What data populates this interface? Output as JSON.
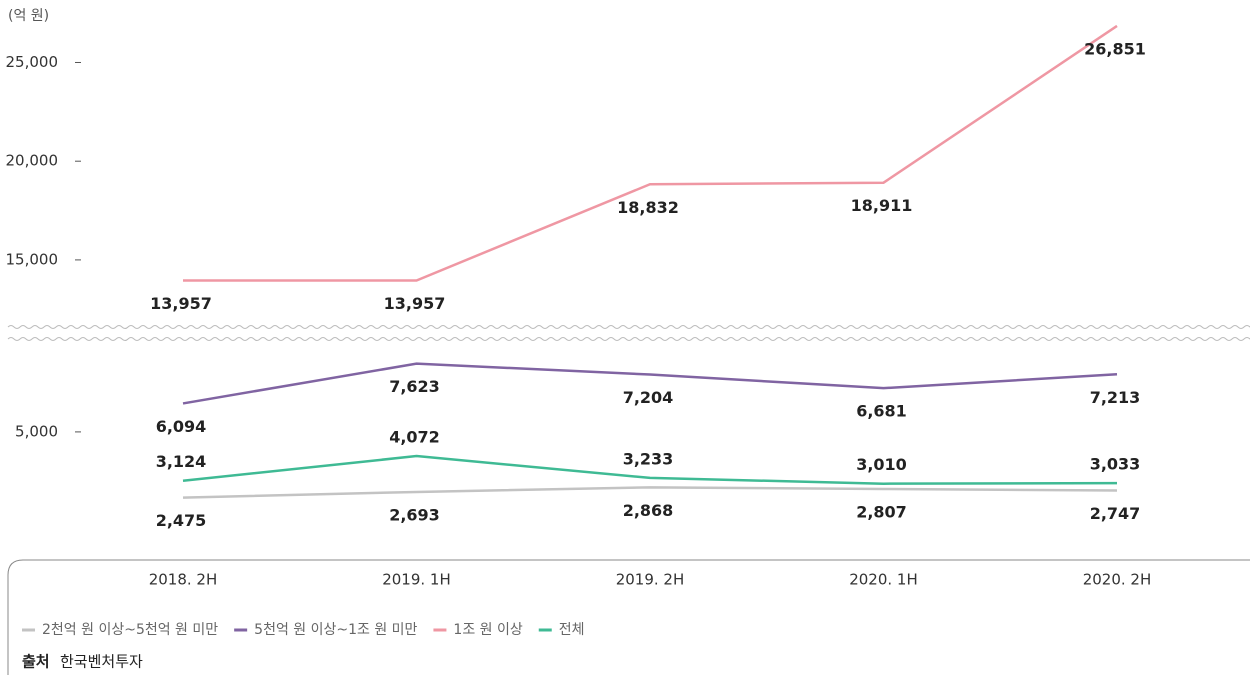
{
  "chart_data": {
    "type": "line",
    "ylabel": "(억 원)",
    "categories": [
      "2018. 2H",
      "2019. 1H",
      "2019. 2H",
      "2020. 1H",
      "2020. 2H"
    ],
    "series": [
      {
        "name": "2천억 원 이상~5천억 원 미만",
        "color": "#c3c3c3",
        "label_position": "below",
        "values": [
          2475,
          2693,
          2868,
          2807,
          2747
        ],
        "value_labels": [
          "2,475",
          "2,693",
          "2,868",
          "2,807",
          "2,747"
        ]
      },
      {
        "name": "5천억 원 이상~1조 원 미만",
        "color": "#8064a2",
        "label_position": "below",
        "values": [
          6094,
          7623,
          7204,
          6681,
          7213
        ],
        "value_labels": [
          "6,094",
          "7,623",
          "7,204",
          "6,681",
          "7,213"
        ]
      },
      {
        "name": "1조 원 이상",
        "color": "#ef97a3",
        "label_position": "below",
        "values": [
          13957,
          13957,
          18832,
          18911,
          26851
        ],
        "value_labels": [
          "13,957",
          "13,957",
          "18,832",
          "18,911",
          "26,851"
        ]
      },
      {
        "name": "전체",
        "color": "#3fba94",
        "label_position": "above",
        "values": [
          3124,
          4072,
          3233,
          3010,
          3033
        ],
        "value_labels": [
          "3,124",
          "4,072",
          "3,233",
          "3,010",
          "3,033"
        ]
      }
    ],
    "ylim": [
      1500,
      27000
    ],
    "axis_break": [
      8800,
      11500
    ],
    "yticks": [
      {
        "value": 5000,
        "label": "5,000"
      },
      {
        "value": 15000,
        "label": "15,000"
      },
      {
        "value": 20000,
        "label": "20,000"
      },
      {
        "value": 25000,
        "label": "25,000"
      }
    ],
    "source_label": "출처",
    "source": "한국벤처투자"
  }
}
